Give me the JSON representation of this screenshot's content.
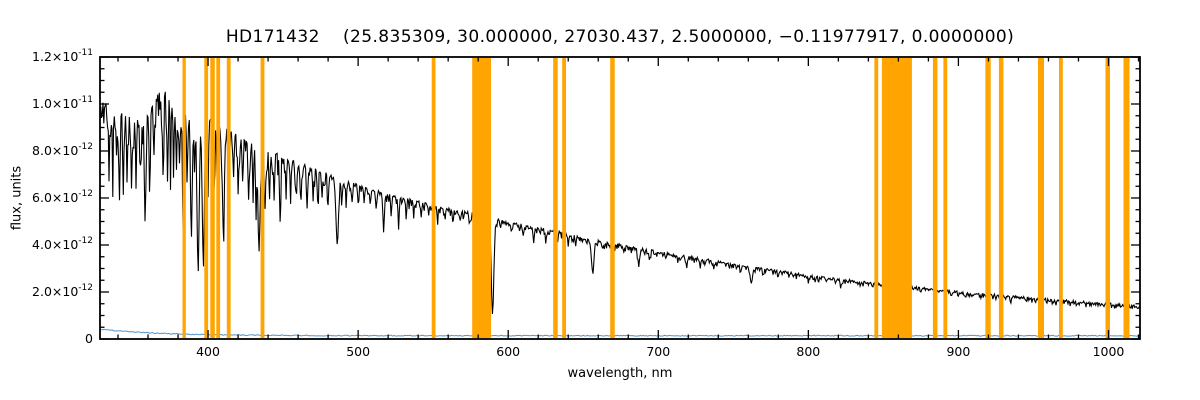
{
  "chart_data": {
    "type": "line",
    "title": "HD171432    (25.835309, 30.000000, 27030.437, 2.5000000, −0.11977917, 0.0000000)",
    "xlabel": "wavelength, nm",
    "ylabel": "flux, units",
    "xlim": [
      328,
      1021
    ],
    "ylim_e12": [
      0,
      12
    ],
    "xticks": [
      400,
      500,
      600,
      700,
      800,
      900,
      1000
    ],
    "yticks": [
      {
        "v": 0,
        "m": "0",
        "e": ""
      },
      {
        "v": 2,
        "m": "2.0×10",
        "e": "-12"
      },
      {
        "v": 4,
        "m": "4.0×10",
        "e": "-12"
      },
      {
        "v": 6,
        "m": "6.0×10",
        "e": "-12"
      },
      {
        "v": 8,
        "m": "8.0×10",
        "e": "-12"
      },
      {
        "v": 10,
        "m": "1.0×10",
        "e": "-11"
      },
      {
        "v": 12,
        "m": "1.2×10",
        "e": "-11"
      }
    ],
    "colors": {
      "spectrum": "#000000",
      "error": "#4f94cd",
      "band": "#ffa400",
      "axis": "#000000"
    },
    "continuum_e12": [
      [
        328,
        10.1
      ],
      [
        332,
        10.0
      ],
      [
        336,
        9.85
      ],
      [
        340,
        9.75
      ],
      [
        344,
        9.6
      ],
      [
        348,
        9.5
      ],
      [
        352,
        9.45
      ],
      [
        356,
        9.4
      ],
      [
        360,
        9.55
      ],
      [
        364,
        10.1
      ],
      [
        368,
        10.55
      ],
      [
        372,
        10.5
      ],
      [
        376,
        10.3
      ],
      [
        380,
        10.0
      ],
      [
        384,
        9.75
      ],
      [
        388,
        9.55
      ],
      [
        392,
        9.4
      ],
      [
        396,
        9.3
      ],
      [
        400,
        9.35
      ],
      [
        405,
        9.2
      ],
      [
        410,
        9.0
      ],
      [
        415,
        8.85
      ],
      [
        420,
        8.65
      ],
      [
        425,
        8.5
      ],
      [
        430,
        8.35
      ],
      [
        435,
        8.2
      ],
      [
        440,
        8.05
      ],
      [
        445,
        7.9
      ],
      [
        450,
        7.75
      ],
      [
        460,
        7.5
      ],
      [
        470,
        7.25
      ],
      [
        480,
        7.0
      ],
      [
        490,
        6.75
      ],
      [
        500,
        6.55
      ],
      [
        510,
        6.35
      ],
      [
        520,
        6.15
      ],
      [
        530,
        6.0
      ],
      [
        540,
        5.85
      ],
      [
        550,
        5.7
      ],
      [
        560,
        5.55
      ],
      [
        570,
        5.45
      ],
      [
        580,
        5.3
      ],
      [
        590,
        5.15
      ],
      [
        600,
        5.0
      ],
      [
        610,
        4.85
      ],
      [
        620,
        4.7
      ],
      [
        630,
        4.6
      ],
      [
        640,
        4.45
      ],
      [
        650,
        4.3
      ],
      [
        660,
        4.2
      ],
      [
        670,
        4.05
      ],
      [
        680,
        3.95
      ],
      [
        690,
        3.85
      ],
      [
        700,
        3.7
      ],
      [
        710,
        3.6
      ],
      [
        720,
        3.5
      ],
      [
        730,
        3.4
      ],
      [
        740,
        3.3
      ],
      [
        750,
        3.2
      ],
      [
        760,
        3.1
      ],
      [
        770,
        3.0
      ],
      [
        780,
        2.9
      ],
      [
        790,
        2.8
      ],
      [
        800,
        2.7
      ],
      [
        810,
        2.62
      ],
      [
        820,
        2.55
      ],
      [
        830,
        2.47
      ],
      [
        840,
        2.4
      ],
      [
        850,
        2.33
      ],
      [
        860,
        2.26
      ],
      [
        870,
        2.2
      ],
      [
        880,
        2.13
      ],
      [
        890,
        2.07
      ],
      [
        900,
        2.0
      ],
      [
        910,
        1.95
      ],
      [
        920,
        1.89
      ],
      [
        930,
        1.83
      ],
      [
        940,
        1.78
      ],
      [
        950,
        1.73
      ],
      [
        960,
        1.68
      ],
      [
        970,
        1.63
      ],
      [
        980,
        1.58
      ],
      [
        990,
        1.53
      ],
      [
        1000,
        1.49
      ],
      [
        1010,
        1.44
      ],
      [
        1021,
        1.4
      ]
    ],
    "lines": [
      [
        334,
        0.3,
        0.5
      ],
      [
        336.5,
        0.25,
        0.5
      ],
      [
        339,
        0.2,
        0.5
      ],
      [
        341,
        0.35,
        0.6
      ],
      [
        343.5,
        0.25,
        0.5
      ],
      [
        346,
        0.3,
        0.5
      ],
      [
        349,
        0.22,
        0.5
      ],
      [
        352,
        0.28,
        0.5
      ],
      [
        355,
        0.2,
        0.5
      ],
      [
        358.1,
        0.45,
        0.7
      ],
      [
        361,
        0.28,
        0.5
      ],
      [
        364,
        0.22,
        0.5
      ],
      [
        370,
        0.3,
        0.6
      ],
      [
        373,
        0.35,
        0.6
      ],
      [
        375,
        0.25,
        0.5
      ],
      [
        377,
        0.2,
        0.5
      ],
      [
        379,
        0.28,
        0.5
      ],
      [
        381,
        0.25,
        0.5
      ],
      [
        383.5,
        0.5,
        0.8
      ],
      [
        386,
        0.3,
        0.5
      ],
      [
        388.9,
        0.55,
        0.8
      ],
      [
        391,
        0.25,
        0.5
      ],
      [
        393.4,
        0.68,
        1.0
      ],
      [
        396.8,
        0.62,
        1.0
      ],
      [
        400,
        0.25,
        0.5
      ],
      [
        404,
        0.3,
        0.6
      ],
      [
        406,
        0.25,
        0.5
      ],
      [
        410.2,
        0.5,
        0.9
      ],
      [
        414,
        0.28,
        0.5
      ],
      [
        417,
        0.22,
        0.5
      ],
      [
        420,
        0.25,
        0.5
      ],
      [
        423,
        0.22,
        0.5
      ],
      [
        427,
        0.3,
        0.6
      ],
      [
        430,
        0.28,
        0.5
      ],
      [
        432,
        0.3,
        0.5
      ],
      [
        434.0,
        0.52,
        1.0
      ],
      [
        438,
        0.3,
        0.6
      ],
      [
        441,
        0.25,
        0.5
      ],
      [
        444,
        0.22,
        0.5
      ],
      [
        448,
        0.3,
        0.6
      ],
      [
        452,
        0.2,
        0.5
      ],
      [
        455,
        0.22,
        0.5
      ],
      [
        459,
        0.18,
        0.5
      ],
      [
        462,
        0.2,
        0.5
      ],
      [
        466,
        0.25,
        0.6
      ],
      [
        470,
        0.18,
        0.5
      ],
      [
        473,
        0.15,
        0.5
      ],
      [
        476,
        0.15,
        0.5
      ],
      [
        480,
        0.15,
        0.5
      ],
      [
        486.1,
        0.42,
        1.1
      ],
      [
        489,
        0.12,
        0.5
      ],
      [
        492,
        0.15,
        0.5
      ],
      [
        496,
        0.1,
        0.5
      ],
      [
        500,
        0.12,
        0.5
      ],
      [
        504,
        0.1,
        0.5
      ],
      [
        508,
        0.1,
        0.5
      ],
      [
        512,
        0.12,
        0.5
      ],
      [
        517,
        0.22,
        0.8
      ],
      [
        522,
        0.12,
        0.5
      ],
      [
        527,
        0.18,
        0.6
      ],
      [
        532,
        0.1,
        0.5
      ],
      [
        537,
        0.08,
        0.5
      ],
      [
        542,
        0.1,
        0.5
      ],
      [
        547,
        0.08,
        0.5
      ],
      [
        553,
        0.1,
        0.5
      ],
      [
        558,
        0.08,
        0.5
      ],
      [
        563,
        0.08,
        0.5
      ],
      [
        568,
        0.08,
        0.5
      ],
      [
        574,
        0.08,
        0.5
      ],
      [
        589.6,
        0.78,
        1.2
      ],
      [
        595,
        0.07,
        0.5
      ],
      [
        602,
        0.08,
        0.5
      ],
      [
        610,
        0.1,
        0.5
      ],
      [
        617,
        0.12,
        0.6
      ],
      [
        625,
        0.1,
        0.5
      ],
      [
        633,
        0.08,
        0.5
      ],
      [
        640,
        0.08,
        0.5
      ],
      [
        645,
        0.08,
        0.5
      ],
      [
        656.3,
        0.32,
        1.2
      ],
      [
        663,
        0.07,
        0.5
      ],
      [
        670,
        0.08,
        0.5
      ],
      [
        677,
        0.07,
        0.5
      ],
      [
        687,
        0.18,
        1.0
      ],
      [
        694,
        0.08,
        0.6
      ],
      [
        705,
        0.07,
        0.5
      ],
      [
        713,
        0.07,
        0.5
      ],
      [
        719,
        0.1,
        0.8
      ],
      [
        728,
        0.08,
        0.6
      ],
      [
        737,
        0.06,
        0.5
      ],
      [
        745,
        0.06,
        0.5
      ],
      [
        755,
        0.08,
        0.6
      ],
      [
        762,
        0.22,
        1.1
      ],
      [
        770,
        0.07,
        0.5
      ],
      [
        780,
        0.06,
        0.5
      ],
      [
        790,
        0.06,
        0.5
      ],
      [
        800,
        0.06,
        0.5
      ],
      [
        812,
        0.07,
        0.6
      ],
      [
        822,
        0.1,
        0.8
      ],
      [
        833,
        0.06,
        0.5
      ],
      [
        843,
        0.07,
        0.5
      ],
      [
        850,
        0.12,
        0.7
      ],
      [
        854.2,
        0.14,
        0.8
      ],
      [
        860,
        0.08,
        0.5
      ],
      [
        866.2,
        0.12,
        0.8
      ],
      [
        875,
        0.07,
        0.5
      ],
      [
        885,
        0.07,
        0.5
      ],
      [
        895,
        0.06,
        0.5
      ],
      [
        905,
        0.06,
        0.5
      ],
      [
        915,
        0.07,
        0.5
      ],
      [
        925,
        0.06,
        0.5
      ],
      [
        935,
        0.07,
        0.5
      ],
      [
        945,
        0.06,
        0.5
      ],
      [
        955,
        0.06,
        0.5
      ],
      [
        965,
        0.06,
        0.5
      ],
      [
        975,
        0.06,
        0.5
      ],
      [
        985,
        0.06,
        0.5
      ],
      [
        995,
        0.06,
        0.5
      ],
      [
        1005,
        0.06,
        0.5
      ],
      [
        1013,
        0.08,
        0.6
      ]
    ],
    "bands_nm": [
      [
        383,
        385.2
      ],
      [
        397.5,
        400
      ],
      [
        401.5,
        404.5
      ],
      [
        405.5,
        408
      ],
      [
        412.5,
        415
      ],
      [
        435,
        437.5
      ],
      [
        549,
        551.5
      ],
      [
        576,
        588.5
      ],
      [
        630,
        633
      ],
      [
        636,
        638.5
      ],
      [
        668,
        671
      ],
      [
        844,
        846.5
      ],
      [
        849,
        869
      ],
      [
        883,
        886
      ],
      [
        890,
        892.5
      ],
      [
        918,
        921.5
      ],
      [
        927,
        930
      ],
      [
        953,
        957
      ],
      [
        967,
        969.5
      ],
      [
        998,
        1001
      ],
      [
        1010,
        1014
      ]
    ],
    "error_curve": {
      "base": 0.14,
      "amp": 0.28,
      "scale": 40
    },
    "noise_amp_e12": {
      "b390": 1.5,
      "b480": 1.1,
      "b590": 0.4,
      "b700": 0.3,
      "b850": 0.2,
      "red": 0.15
    }
  }
}
